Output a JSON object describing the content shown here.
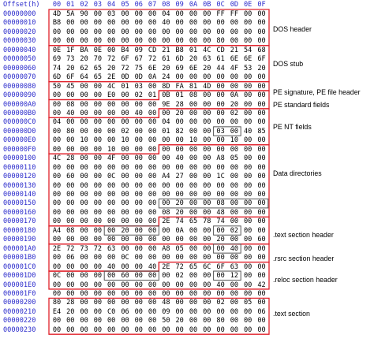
{
  "header": {
    "offset_label": "Offset(h)",
    "columns": [
      "00",
      "01",
      "02",
      "03",
      "04",
      "05",
      "06",
      "07",
      "08",
      "09",
      "0A",
      "0B",
      "0C",
      "0D",
      "0E",
      "0F"
    ]
  },
  "rows": [
    {
      "offset": "00000000",
      "bytes": [
        "4D",
        "5A",
        "90",
        "00",
        "03",
        "00",
        "00",
        "00",
        "04",
        "00",
        "00",
        "00",
        "FF",
        "FF",
        "00",
        "00"
      ]
    },
    {
      "offset": "00000010",
      "bytes": [
        "B8",
        "00",
        "00",
        "00",
        "00",
        "00",
        "00",
        "00",
        "40",
        "00",
        "00",
        "00",
        "00",
        "00",
        "00",
        "00"
      ]
    },
    {
      "offset": "00000020",
      "bytes": [
        "00",
        "00",
        "00",
        "00",
        "00",
        "00",
        "00",
        "00",
        "00",
        "00",
        "00",
        "00",
        "00",
        "00",
        "00",
        "00"
      ]
    },
    {
      "offset": "00000030",
      "bytes": [
        "00",
        "00",
        "00",
        "00",
        "00",
        "00",
        "00",
        "00",
        "00",
        "00",
        "00",
        "00",
        "80",
        "00",
        "00",
        "00"
      ]
    },
    {
      "offset": "00000040",
      "bytes": [
        "0E",
        "1F",
        "BA",
        "0E",
        "00",
        "B4",
        "09",
        "CD",
        "21",
        "B8",
        "01",
        "4C",
        "CD",
        "21",
        "54",
        "68"
      ]
    },
    {
      "offset": "00000050",
      "bytes": [
        "69",
        "73",
        "20",
        "70",
        "72",
        "6F",
        "67",
        "72",
        "61",
        "6D",
        "20",
        "63",
        "61",
        "6E",
        "6E",
        "6F"
      ]
    },
    {
      "offset": "00000060",
      "bytes": [
        "74",
        "20",
        "62",
        "65",
        "20",
        "72",
        "75",
        "6E",
        "20",
        "69",
        "6E",
        "20",
        "44",
        "4F",
        "53",
        "20"
      ]
    },
    {
      "offset": "00000070",
      "bytes": [
        "6D",
        "6F",
        "64",
        "65",
        "2E",
        "0D",
        "0D",
        "0A",
        "24",
        "00",
        "00",
        "00",
        "00",
        "00",
        "00",
        "00"
      ]
    },
    {
      "offset": "00000080",
      "bytes": [
        "50",
        "45",
        "00",
        "00",
        "4C",
        "01",
        "03",
        "00",
        "8D",
        "FA",
        "81",
        "4D",
        "00",
        "00",
        "00",
        "00"
      ]
    },
    {
      "offset": "00000090",
      "bytes": [
        "00",
        "00",
        "00",
        "00",
        "E0",
        "00",
        "02",
        "01",
        "0B",
        "01",
        "08",
        "00",
        "00",
        "0A",
        "00",
        "00"
      ]
    },
    {
      "offset": "000000A0",
      "bytes": [
        "00",
        "08",
        "00",
        "00",
        "00",
        "00",
        "00",
        "00",
        "9E",
        "28",
        "00",
        "00",
        "00",
        "20",
        "00",
        "00"
      ]
    },
    {
      "offset": "000000B0",
      "bytes": [
        "00",
        "40",
        "00",
        "00",
        "00",
        "00",
        "40",
        "00",
        "00",
        "20",
        "00",
        "00",
        "00",
        "02",
        "00",
        "00"
      ]
    },
    {
      "offset": "000000C0",
      "bytes": [
        "04",
        "00",
        "00",
        "00",
        "00",
        "00",
        "00",
        "00",
        "04",
        "00",
        "00",
        "00",
        "00",
        "00",
        "00",
        "00"
      ]
    },
    {
      "offset": "000000D0",
      "bytes": [
        "00",
        "80",
        "00",
        "00",
        "00",
        "02",
        "00",
        "00",
        "01",
        "82",
        "00",
        "00",
        "03",
        "00",
        "40",
        "85"
      ]
    },
    {
      "offset": "000000E0",
      "bytes": [
        "00",
        "00",
        "10",
        "00",
        "00",
        "10",
        "00",
        "00",
        "00",
        "00",
        "10",
        "00",
        "00",
        "10",
        "00",
        "00"
      ]
    },
    {
      "offset": "000000F0",
      "bytes": [
        "00",
        "00",
        "00",
        "00",
        "10",
        "00",
        "00",
        "00",
        "00",
        "00",
        "00",
        "00",
        "00",
        "00",
        "00",
        "00"
      ]
    },
    {
      "offset": "00000100",
      "bytes": [
        "4C",
        "28",
        "00",
        "00",
        "4F",
        "00",
        "00",
        "00",
        "00",
        "40",
        "00",
        "00",
        "A8",
        "05",
        "00",
        "00"
      ]
    },
    {
      "offset": "00000110",
      "bytes": [
        "00",
        "00",
        "00",
        "00",
        "00",
        "00",
        "00",
        "00",
        "00",
        "00",
        "00",
        "00",
        "00",
        "00",
        "00",
        "00"
      ]
    },
    {
      "offset": "00000120",
      "bytes": [
        "00",
        "60",
        "00",
        "00",
        "0C",
        "00",
        "00",
        "00",
        "A4",
        "27",
        "00",
        "00",
        "1C",
        "00",
        "00",
        "00"
      ]
    },
    {
      "offset": "00000130",
      "bytes": [
        "00",
        "00",
        "00",
        "00",
        "00",
        "00",
        "00",
        "00",
        "00",
        "00",
        "00",
        "00",
        "00",
        "00",
        "00",
        "00"
      ]
    },
    {
      "offset": "00000140",
      "bytes": [
        "00",
        "00",
        "00",
        "00",
        "00",
        "00",
        "00",
        "00",
        "00",
        "00",
        "00",
        "00",
        "00",
        "00",
        "00",
        "00"
      ]
    },
    {
      "offset": "00000150",
      "bytes": [
        "00",
        "00",
        "00",
        "00",
        "00",
        "00",
        "00",
        "00",
        "00",
        "20",
        "00",
        "00",
        "08",
        "00",
        "00",
        "00"
      ]
    },
    {
      "offset": "00000160",
      "bytes": [
        "00",
        "00",
        "00",
        "00",
        "00",
        "00",
        "00",
        "00",
        "08",
        "20",
        "00",
        "00",
        "48",
        "00",
        "00",
        "00"
      ]
    },
    {
      "offset": "00000170",
      "bytes": [
        "00",
        "00",
        "00",
        "00",
        "00",
        "00",
        "00",
        "00",
        "2E",
        "74",
        "65",
        "78",
        "74",
        "00",
        "00",
        "00"
      ]
    },
    {
      "offset": "00000180",
      "bytes": [
        "A4",
        "08",
        "00",
        "00",
        "00",
        "20",
        "00",
        "00",
        "00",
        "0A",
        "00",
        "00",
        "00",
        "02",
        "00",
        "00"
      ]
    },
    {
      "offset": "00000190",
      "bytes": [
        "00",
        "00",
        "00",
        "00",
        "00",
        "00",
        "00",
        "00",
        "00",
        "00",
        "00",
        "00",
        "20",
        "00",
        "00",
        "60"
      ]
    },
    {
      "offset": "000001A0",
      "bytes": [
        "2E",
        "72",
        "73",
        "72",
        "63",
        "00",
        "00",
        "00",
        "A8",
        "05",
        "00",
        "00",
        "00",
        "40",
        "00",
        "00"
      ]
    },
    {
      "offset": "000001B0",
      "bytes": [
        "00",
        "06",
        "00",
        "00",
        "00",
        "0C",
        "00",
        "00",
        "00",
        "00",
        "00",
        "00",
        "00",
        "00",
        "00",
        "00"
      ]
    },
    {
      "offset": "000001C0",
      "bytes": [
        "00",
        "00",
        "00",
        "00",
        "40",
        "00",
        "00",
        "40",
        "2E",
        "72",
        "65",
        "6C",
        "6F",
        "63",
        "00",
        "00"
      ]
    },
    {
      "offset": "000001D0",
      "bytes": [
        "0C",
        "00",
        "00",
        "00",
        "00",
        "60",
        "00",
        "00",
        "00",
        "02",
        "00",
        "00",
        "00",
        "12",
        "00",
        "00"
      ]
    },
    {
      "offset": "000001E0",
      "bytes": [
        "00",
        "00",
        "00",
        "00",
        "00",
        "00",
        "00",
        "00",
        "00",
        "00",
        "00",
        "00",
        "40",
        "00",
        "00",
        "42"
      ]
    },
    {
      "offset": "000001F0",
      "bytes": [
        "00",
        "00",
        "00",
        "00",
        "00",
        "00",
        "00",
        "00",
        "00",
        "00",
        "00",
        "00",
        "00",
        "00",
        "00",
        "00"
      ]
    },
    {
      "offset": "00000200",
      "bytes": [
        "80",
        "28",
        "00",
        "00",
        "00",
        "00",
        "00",
        "00",
        "48",
        "00",
        "00",
        "00",
        "02",
        "00",
        "05",
        "00"
      ]
    },
    {
      "offset": "00000210",
      "bytes": [
        "E4",
        "20",
        "00",
        "00",
        "C0",
        "06",
        "00",
        "00",
        "09",
        "00",
        "00",
        "00",
        "00",
        "00",
        "00",
        "06"
      ]
    },
    {
      "offset": "00000220",
      "bytes": [
        "00",
        "00",
        "00",
        "00",
        "00",
        "00",
        "00",
        "00",
        "50",
        "20",
        "00",
        "00",
        "80",
        "00",
        "00",
        "00"
      ]
    },
    {
      "offset": "00000230",
      "bytes": [
        "00",
        "00",
        "00",
        "00",
        "00",
        "00",
        "00",
        "00",
        "00",
        "00",
        "00",
        "00",
        "00",
        "00",
        "00",
        "00"
      ]
    }
  ],
  "labels": {
    "dos_header": "DOS header",
    "dos_stub": "DOS stub",
    "pe_signature": "PE signature, PE file header",
    "pe_standard": "PE standard fields",
    "pe_nt": "PE NT fields",
    "data_directories": "Data directories",
    "text_header": ".text section header",
    "rsrc_header": ".rsrc section header",
    "reloc_header": ".reloc section header",
    "text_section": ".text section"
  },
  "colors": {
    "offset_text": "#2b2bcc",
    "box_border": "#e0202a"
  }
}
